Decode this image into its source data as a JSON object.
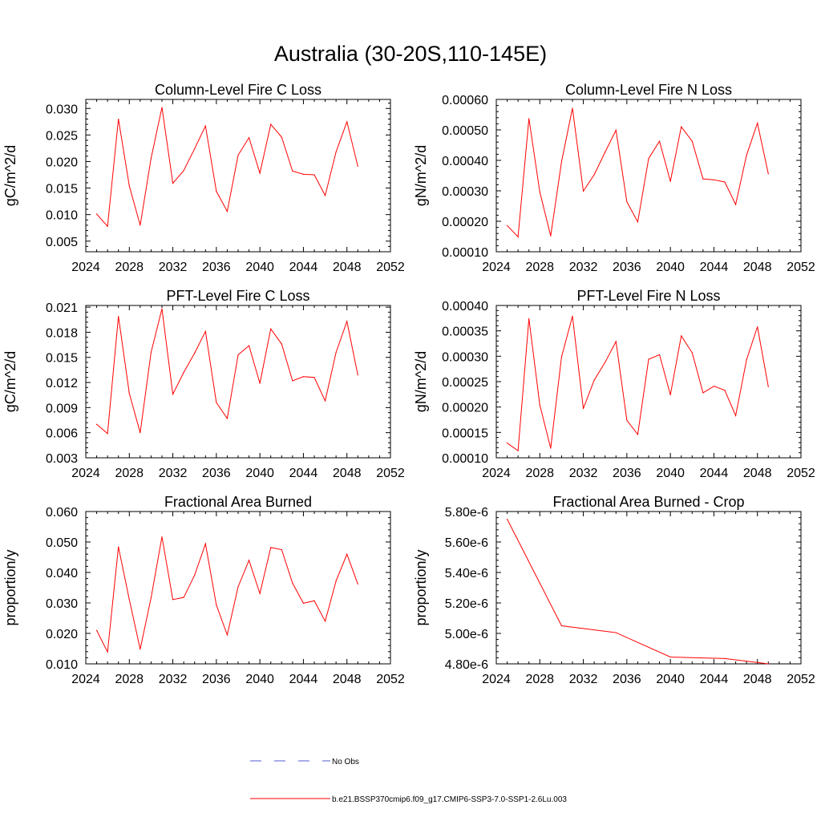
{
  "figure_title": "Australia (30-20S,110-145E)",
  "legend": {
    "items": [
      {
        "label": "No Obs",
        "color": "#4f5bd5",
        "style": "dashed"
      },
      {
        "label": "b.e21.BSSP370cmip6.f09_g17.CMIP6-SSP3-7.0-SSP1-2.6Lu.003",
        "color": "#ff0000",
        "style": "solid"
      }
    ]
  },
  "chart_data": [
    {
      "type": "line",
      "title": "Column-Level Fire C Loss",
      "ylabel": "gC/m^2/d",
      "xlim": [
        2024,
        2052
      ],
      "ylim": [
        0.003,
        0.0317
      ],
      "xticks": [
        2024,
        2028,
        2032,
        2036,
        2040,
        2044,
        2048,
        2052
      ],
      "xtick_labels": [
        "2024",
        "2028",
        "2032",
        "2036",
        "2040",
        "2044",
        "2048",
        "2052"
      ],
      "yticks": [
        0.005,
        0.01,
        0.015,
        0.02,
        0.025,
        0.03
      ],
      "ytick_labels": [
        "0.005",
        "0.010",
        "0.015",
        "0.020",
        "0.025",
        "0.030"
      ],
      "series": [
        {
          "color": "#ff0000",
          "x": [
            2025,
            2026,
            2027,
            2028,
            2029,
            2030,
            2031,
            2032,
            2033,
            2034,
            2035,
            2036,
            2037,
            2038,
            2039,
            2040,
            2041,
            2042,
            2043,
            2044,
            2045,
            2046,
            2047,
            2048,
            2049
          ],
          "y": [
            0.0101,
            0.0078,
            0.028,
            0.0154,
            0.008,
            0.0206,
            0.0302,
            0.0159,
            0.0183,
            0.0224,
            0.0267,
            0.0144,
            0.0106,
            0.0212,
            0.0245,
            0.0178,
            0.027,
            0.0246,
            0.0182,
            0.0176,
            0.0175,
            0.0136,
            0.0218,
            0.0275,
            0.0191
          ]
        }
      ]
    },
    {
      "type": "line",
      "title": "Column-Level Fire N Loss",
      "ylabel": "gN/m^2/d",
      "xlim": [
        2024,
        2052
      ],
      "ylim": [
        0.0001,
        0.0006
      ],
      "xticks": [
        2024,
        2028,
        2032,
        2036,
        2040,
        2044,
        2048,
        2052
      ],
      "xtick_labels": [
        "2024",
        "2028",
        "2032",
        "2036",
        "2040",
        "2044",
        "2048",
        "2052"
      ],
      "yticks": [
        0.0001,
        0.0002,
        0.0003,
        0.0004,
        0.0005,
        0.0006
      ],
      "ytick_labels": [
        "0.00010",
        "0.00020",
        "0.00030",
        "0.00040",
        "0.00050",
        "0.00060"
      ],
      "series": [
        {
          "color": "#ff0000",
          "x": [
            2025,
            2026,
            2027,
            2028,
            2029,
            2030,
            2031,
            2032,
            2033,
            2034,
            2035,
            2036,
            2037,
            2038,
            2039,
            2040,
            2041,
            2042,
            2043,
            2044,
            2045,
            2046,
            2047,
            2048,
            2049
          ],
          "y": [
            0.000186,
            0.000149,
            0.000537,
            0.000296,
            0.000152,
            0.000396,
            0.000571,
            0.000299,
            0.000353,
            0.000427,
            0.000499,
            0.000264,
            0.000198,
            0.000406,
            0.000463,
            0.000331,
            0.00051,
            0.000463,
            0.000339,
            0.000336,
            0.000329,
            0.000255,
            0.000417,
            0.000522,
            0.000356
          ]
        }
      ]
    },
    {
      "type": "line",
      "title": "PFT-Level Fire C Loss",
      "ylabel": "gC/m^2/d",
      "xlim": [
        2024,
        2052
      ],
      "ylim": [
        0.003,
        0.0212
      ],
      "xticks": [
        2024,
        2028,
        2032,
        2036,
        2040,
        2044,
        2048,
        2052
      ],
      "xtick_labels": [
        "2024",
        "2028",
        "2032",
        "2036",
        "2040",
        "2044",
        "2048",
        "2052"
      ],
      "yticks": [
        0.003,
        0.006,
        0.009,
        0.012,
        0.015,
        0.018,
        0.021
      ],
      "ytick_labels": [
        "0.003",
        "0.006",
        "0.009",
        "0.012",
        "0.015",
        "0.018",
        "0.021"
      ],
      "series": [
        {
          "color": "#ff0000",
          "x": [
            2025,
            2026,
            2027,
            2028,
            2029,
            2030,
            2031,
            2032,
            2033,
            2034,
            2035,
            2036,
            2037,
            2038,
            2039,
            2040,
            2041,
            2042,
            2043,
            2044,
            2045,
            2046,
            2047,
            2048,
            2049
          ],
          "y": [
            0.007,
            0.0059,
            0.0199,
            0.0107,
            0.006,
            0.0156,
            0.0208,
            0.0106,
            0.0132,
            0.0155,
            0.0181,
            0.0096,
            0.0077,
            0.0153,
            0.0164,
            0.0119,
            0.0184,
            0.0166,
            0.0122,
            0.0127,
            0.0126,
            0.0098,
            0.0156,
            0.0193,
            0.0129
          ]
        }
      ]
    },
    {
      "type": "line",
      "title": "PFT-Level Fire N Loss",
      "ylabel": "gN/m^2/d",
      "xlim": [
        2024,
        2052
      ],
      "ylim": [
        0.0001,
        0.0004
      ],
      "xticks": [
        2024,
        2028,
        2032,
        2036,
        2040,
        2044,
        2048,
        2052
      ],
      "xtick_labels": [
        "2024",
        "2028",
        "2032",
        "2036",
        "2040",
        "2044",
        "2048",
        "2052"
      ],
      "yticks": [
        0.0001,
        0.00015,
        0.0002,
        0.00025,
        0.0003,
        0.00035,
        0.0004
      ],
      "ytick_labels": [
        "0.00010",
        "0.00015",
        "0.00020",
        "0.00025",
        "0.00030",
        "0.00035",
        "0.00040"
      ],
      "series": [
        {
          "color": "#ff0000",
          "x": [
            2025,
            2026,
            2027,
            2028,
            2029,
            2030,
            2031,
            2032,
            2033,
            2034,
            2035,
            2036,
            2037,
            2038,
            2039,
            2040,
            2041,
            2042,
            2043,
            2044,
            2045,
            2046,
            2047,
            2048,
            2049
          ],
          "y": [
            0.000129,
            0.000114,
            0.000374,
            0.000204,
            0.000119,
            0.000299,
            0.000379,
            0.000197,
            0.000253,
            0.000288,
            0.000329,
            0.000174,
            0.000146,
            0.000294,
            0.000303,
            0.000224,
            0.00034,
            0.000307,
            0.000228,
            0.000241,
            0.000233,
            0.000183,
            0.000293,
            0.000358,
            0.00024
          ]
        }
      ]
    },
    {
      "type": "line",
      "title": "Fractional Area Burned",
      "ylabel": "proportion/y",
      "xlim": [
        2024,
        2052
      ],
      "ylim": [
        0.01,
        0.06
      ],
      "xticks": [
        2024,
        2028,
        2032,
        2036,
        2040,
        2044,
        2048,
        2052
      ],
      "xtick_labels": [
        "2024",
        "2028",
        "2032",
        "2036",
        "2040",
        "2044",
        "2048",
        "2052"
      ],
      "yticks": [
        0.01,
        0.02,
        0.03,
        0.04,
        0.05,
        0.06
      ],
      "ytick_labels": [
        "0.010",
        "0.020",
        "0.030",
        "0.040",
        "0.050",
        "0.060"
      ],
      "series": [
        {
          "color": "#ff0000",
          "x": [
            2025,
            2026,
            2027,
            2028,
            2029,
            2030,
            2031,
            2032,
            2033,
            2034,
            2035,
            2036,
            2037,
            2038,
            2039,
            2040,
            2041,
            2042,
            2043,
            2044,
            2045,
            2046,
            2047,
            2048,
            2049
          ],
          "y": [
            0.021,
            0.0139,
            0.0484,
            0.0311,
            0.0148,
            0.0317,
            0.0517,
            0.0311,
            0.0318,
            0.0391,
            0.0494,
            0.0293,
            0.0195,
            0.0353,
            0.044,
            0.0331,
            0.0482,
            0.0475,
            0.0365,
            0.0299,
            0.0307,
            0.024,
            0.0372,
            0.046,
            0.0362
          ]
        }
      ]
    },
    {
      "type": "line",
      "title": "Fractional Area Burned - Crop",
      "ylabel": "proportion/y",
      "xlim": [
        2024,
        2052
      ],
      "ylim": [
        4.8e-06,
        5.8e-06
      ],
      "xticks": [
        2024,
        2028,
        2032,
        2036,
        2040,
        2044,
        2048,
        2052
      ],
      "xtick_labels": [
        "2024",
        "2028",
        "2032",
        "2036",
        "2040",
        "2044",
        "2048",
        "2052"
      ],
      "yticks": [
        4.8e-06,
        5e-06,
        5.2e-06,
        5.4e-06,
        5.6e-06,
        5.8e-06
      ],
      "ytick_labels": [
        "4.80e-6",
        "5.00e-6",
        "5.20e-6",
        "5.40e-6",
        "5.60e-6",
        "5.80e-6"
      ],
      "series": [
        {
          "color": "#ff0000",
          "x": [
            2025,
            2030,
            2035,
            2040,
            2045,
            2049
          ],
          "y": [
            5.75e-06,
            5.05e-06,
            5.005e-06,
            4.845e-06,
            4.835e-06,
            4.8e-06
          ]
        }
      ]
    }
  ]
}
